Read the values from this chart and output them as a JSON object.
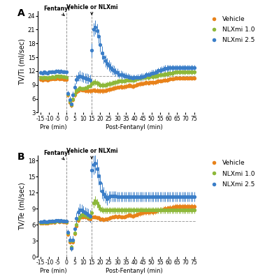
{
  "panel_A": {
    "title": "A",
    "ylabel": "TV/Ti (ml/sec)",
    "ylim": [
      3,
      25
    ],
    "yticks": [
      3,
      6,
      9,
      12,
      15,
      18,
      21,
      24
    ],
    "baseline_ref": 11.0,
    "vehicle": {
      "pre_y": [
        10.2,
        10.1,
        10.3,
        10.2,
        10.1,
        10.2,
        10.3,
        10.4,
        10.3,
        10.4,
        10.5,
        10.3,
        10.4,
        10.3,
        10.2,
        10.2
      ],
      "pre_err": [
        0.4,
        0.4,
        0.4,
        0.4,
        0.4,
        0.4,
        0.4,
        0.4,
        0.4,
        0.4,
        0.4,
        0.4,
        0.4,
        0.4,
        0.4,
        0.4
      ],
      "post_y": [
        6.8,
        5.2,
        4.6,
        5.8,
        6.8,
        7.5,
        7.8,
        8.0,
        7.9,
        7.9,
        7.8,
        7.8,
        7.7,
        7.7,
        7.8,
        7.9,
        7.8,
        7.8,
        7.7,
        7.7,
        7.7,
        7.7,
        7.8,
        7.9,
        8.0,
        8.1,
        8.2,
        8.3,
        8.4,
        8.5,
        8.5,
        8.6,
        8.5,
        8.6,
        8.7,
        8.8,
        8.9,
        8.8,
        8.7,
        8.8,
        9.0,
        9.1,
        9.2,
        9.3,
        9.3,
        9.4,
        9.5,
        9.4,
        9.5,
        9.6,
        9.5,
        9.6,
        9.7,
        9.8,
        9.9,
        9.9,
        10.0,
        10.1,
        10.1,
        10.2,
        10.3,
        10.3,
        10.4,
        10.5,
        10.5,
        10.5,
        10.5,
        10.5,
        10.5,
        10.5,
        10.5,
        10.5,
        10.5,
        10.5,
        10.5
      ],
      "post_err": [
        0.5,
        0.6,
        0.5,
        0.5,
        0.5,
        0.5,
        0.5,
        0.5,
        0.5,
        0.5,
        0.5,
        0.5,
        0.5,
        0.5,
        0.5,
        0.5,
        0.5,
        0.5,
        0.5,
        0.5,
        0.5,
        0.5,
        0.5,
        0.5,
        0.5,
        0.5,
        0.5,
        0.5,
        0.5,
        0.5,
        0.5,
        0.5,
        0.5,
        0.5,
        0.5,
        0.5,
        0.5,
        0.5,
        0.5,
        0.5,
        0.5,
        0.5,
        0.5,
        0.5,
        0.5,
        0.5,
        0.5,
        0.5,
        0.5,
        0.5,
        0.5,
        0.5,
        0.5,
        0.5,
        0.5,
        0.5,
        0.5,
        0.5,
        0.5,
        0.5,
        0.5,
        0.5,
        0.5,
        0.5,
        0.5,
        0.5,
        0.5,
        0.5,
        0.5,
        0.5,
        0.5,
        0.5,
        0.5,
        0.5,
        0.5
      ]
    },
    "nlx1": {
      "pre_y": [
        10.6,
        10.5,
        10.7,
        10.6,
        10.5,
        10.7,
        10.7,
        10.8,
        10.7,
        10.9,
        10.9,
        10.8,
        10.9,
        10.8,
        10.8,
        10.7
      ],
      "pre_err": [
        0.4,
        0.4,
        0.4,
        0.4,
        0.4,
        0.4,
        0.4,
        0.4,
        0.4,
        0.4,
        0.4,
        0.4,
        0.4,
        0.4,
        0.4,
        0.4
      ],
      "post_y": [
        7.0,
        5.5,
        4.8,
        6.0,
        7.0,
        7.8,
        8.1,
        8.3,
        8.2,
        8.2,
        8.3,
        8.4,
        8.6,
        8.8,
        9.2,
        9.5,
        9.6,
        9.4,
        9.2,
        9.0,
        9.0,
        8.9,
        9.0,
        9.1,
        9.2,
        9.3,
        9.4,
        9.5,
        9.6,
        9.7,
        9.8,
        9.9,
        9.8,
        9.9,
        10.0,
        10.1,
        10.2,
        10.1,
        10.0,
        10.1,
        10.3,
        10.4,
        10.5,
        10.6,
        10.6,
        10.7,
        10.8,
        10.7,
        10.8,
        10.9,
        10.8,
        10.9,
        11.0,
        11.1,
        11.2,
        11.2,
        11.3,
        11.4,
        11.4,
        11.5,
        11.6,
        11.6,
        11.7,
        11.8,
        11.8,
        11.8,
        11.8,
        11.8,
        11.8,
        11.8,
        11.8,
        11.8,
        11.8,
        11.8,
        11.8
      ],
      "post_err": [
        0.5,
        0.6,
        0.5,
        0.5,
        0.5,
        0.5,
        0.5,
        0.5,
        0.5,
        0.5,
        0.5,
        0.5,
        0.5,
        0.5,
        0.6,
        0.7,
        0.7,
        0.7,
        0.6,
        0.6,
        0.6,
        0.6,
        0.6,
        0.6,
        0.6,
        0.6,
        0.6,
        0.6,
        0.6,
        0.6,
        0.6,
        0.6,
        0.6,
        0.6,
        0.6,
        0.6,
        0.6,
        0.6,
        0.6,
        0.6,
        0.6,
        0.6,
        0.6,
        0.6,
        0.6,
        0.6,
        0.6,
        0.6,
        0.6,
        0.6,
        0.6,
        0.6,
        0.6,
        0.6,
        0.6,
        0.6,
        0.6,
        0.6,
        0.6,
        0.6,
        0.6,
        0.6,
        0.6,
        0.6,
        0.6,
        0.6,
        0.6,
        0.6,
        0.6,
        0.6,
        0.6,
        0.6,
        0.6,
        0.6,
        0.6
      ]
    },
    "nlx25": {
      "pre_y": [
        11.7,
        11.6,
        11.8,
        11.7,
        11.6,
        11.8,
        11.8,
        11.9,
        11.8,
        12.0,
        12.0,
        11.9,
        12.0,
        11.9,
        11.9,
        11.8
      ],
      "pre_err": [
        0.4,
        0.4,
        0.4,
        0.4,
        0.4,
        0.4,
        0.4,
        0.4,
        0.4,
        0.4,
        0.4,
        0.4,
        0.4,
        0.4,
        0.4,
        0.4
      ],
      "post_y": [
        7.2,
        5.8,
        4.9,
        6.8,
        8.5,
        10.2,
        10.8,
        11.0,
        10.8,
        10.6,
        10.5,
        10.4,
        10.3,
        10.1,
        16.5,
        21.0,
        21.5,
        20.8,
        19.5,
        17.8,
        16.0,
        15.0,
        14.2,
        13.7,
        13.2,
        12.8,
        12.3,
        12.2,
        11.8,
        11.7,
        11.3,
        11.3,
        11.2,
        11.0,
        11.0,
        10.8,
        10.7,
        10.6,
        10.5,
        10.6,
        10.6,
        10.7,
        10.7,
        10.8,
        10.8,
        10.9,
        11.2,
        11.2,
        11.3,
        11.6,
        11.6,
        11.7,
        11.8,
        12.1,
        12.2,
        12.3,
        12.5,
        12.6,
        12.6,
        12.7,
        12.7,
        12.7,
        12.7,
        12.7,
        12.7,
        12.7,
        12.7,
        12.7,
        12.7,
        12.7,
        12.7,
        12.7,
        12.7,
        12.7,
        12.7
      ],
      "post_err": [
        0.6,
        0.8,
        0.7,
        0.8,
        0.9,
        1.0,
        1.0,
        1.1,
        1.1,
        1.1,
        1.1,
        1.1,
        1.1,
        1.2,
        1.5,
        1.5,
        1.5,
        1.5,
        1.5,
        1.5,
        1.5,
        1.3,
        1.3,
        1.2,
        1.2,
        1.1,
        1.0,
        1.0,
        0.9,
        0.9,
        0.8,
        0.8,
        0.8,
        0.7,
        0.7,
        0.7,
        0.7,
        0.7,
        0.7,
        0.7,
        0.7,
        0.7,
        0.7,
        0.7,
        0.7,
        0.7,
        0.7,
        0.7,
        0.7,
        0.7,
        0.7,
        0.7,
        0.7,
        0.7,
        0.7,
        0.7,
        0.7,
        0.7,
        0.7,
        0.7,
        0.7,
        0.7,
        0.7,
        0.7,
        0.7,
        0.7,
        0.7,
        0.7,
        0.7,
        0.7,
        0.7,
        0.7,
        0.7,
        0.7,
        0.7
      ]
    }
  },
  "panel_B": {
    "title": "B",
    "ylabel": "TV/Te (ml/sec)",
    "ylim": [
      0,
      19
    ],
    "yticks": [
      0,
      3,
      6,
      9,
      12,
      15,
      18
    ],
    "baseline_ref": 6.7,
    "vehicle": {
      "pre_y": [
        6.3,
        6.3,
        6.4,
        6.3,
        6.3,
        6.4,
        6.4,
        6.5,
        6.4,
        6.6,
        6.6,
        6.5,
        6.6,
        6.5,
        6.5,
        6.4
      ],
      "pre_err": [
        0.3,
        0.3,
        0.3,
        0.3,
        0.3,
        0.3,
        0.3,
        0.3,
        0.3,
        0.3,
        0.3,
        0.3,
        0.3,
        0.3,
        0.3,
        0.3
      ],
      "post_y": [
        4.2,
        2.8,
        1.6,
        2.8,
        4.3,
        5.8,
        6.8,
        7.3,
        7.5,
        7.5,
        7.4,
        7.4,
        7.2,
        7.1,
        7.5,
        7.5,
        7.4,
        7.3,
        7.3,
        7.0,
        7.0,
        6.9,
        7.0,
        7.1,
        7.2,
        7.3,
        7.4,
        7.5,
        7.6,
        7.5,
        7.6,
        7.5,
        7.4,
        7.5,
        7.6,
        7.7,
        7.8,
        7.7,
        7.6,
        7.7,
        7.9,
        8.0,
        8.1,
        8.2,
        8.2,
        8.3,
        8.4,
        8.3,
        8.4,
        8.5,
        8.4,
        8.5,
        8.6,
        8.7,
        8.8,
        8.8,
        8.9,
        9.0,
        9.0,
        9.1,
        9.2,
        9.2,
        9.3,
        9.4,
        9.4,
        9.4,
        9.4,
        9.4,
        9.4,
        9.4,
        9.4,
        9.4,
        9.4,
        9.4,
        9.4
      ],
      "post_err": [
        0.4,
        0.5,
        0.4,
        0.4,
        0.4,
        0.4,
        0.4,
        0.4,
        0.4,
        0.4,
        0.4,
        0.4,
        0.4,
        0.4,
        0.4,
        0.4,
        0.4,
        0.4,
        0.4,
        0.4,
        0.4,
        0.4,
        0.4,
        0.4,
        0.4,
        0.4,
        0.4,
        0.4,
        0.4,
        0.4,
        0.4,
        0.4,
        0.4,
        0.4,
        0.4,
        0.4,
        0.4,
        0.4,
        0.4,
        0.4,
        0.5,
        0.5,
        0.5,
        0.5,
        0.5,
        0.5,
        0.5,
        0.5,
        0.5,
        0.5,
        0.5,
        0.5,
        0.5,
        0.5,
        0.5,
        0.5,
        0.5,
        0.5,
        0.5,
        0.5,
        0.5,
        0.5,
        0.5,
        0.5,
        0.5,
        0.5,
        0.5,
        0.5,
        0.5,
        0.5,
        0.5,
        0.5,
        0.5,
        0.5,
        0.5
      ]
    },
    "nlx1": {
      "pre_y": [
        6.4,
        6.4,
        6.5,
        6.4,
        6.4,
        6.5,
        6.5,
        6.6,
        6.5,
        6.7,
        6.7,
        6.6,
        6.7,
        6.6,
        6.6,
        6.5
      ],
      "pre_err": [
        0.3,
        0.3,
        0.3,
        0.3,
        0.3,
        0.3,
        0.3,
        0.3,
        0.3,
        0.3,
        0.3,
        0.3,
        0.3,
        0.3,
        0.3,
        0.3
      ],
      "post_y": [
        4.4,
        3.0,
        1.8,
        3.0,
        4.5,
        6.0,
        7.0,
        7.5,
        7.8,
        7.8,
        7.7,
        7.7,
        7.5,
        7.4,
        8.2,
        10.0,
        10.5,
        10.0,
        9.5,
        9.0,
        8.8,
        8.7,
        8.7,
        8.7,
        8.7,
        8.7,
        8.7,
        8.7,
        8.7,
        8.7,
        8.7,
        8.7,
        8.7,
        8.7,
        8.7,
        8.7,
        8.7,
        8.7,
        8.7,
        8.7,
        8.7,
        8.7,
        8.7,
        8.7,
        8.7,
        8.7,
        8.7,
        8.7,
        8.7,
        8.7,
        8.7,
        8.7,
        8.7,
        8.7,
        8.7,
        8.7,
        8.7,
        8.7,
        8.7,
        8.7,
        8.7,
        8.7,
        8.7,
        8.7,
        8.7,
        8.7,
        8.7,
        8.7,
        8.7,
        8.7,
        8.7,
        8.7,
        8.7,
        8.7,
        8.7
      ],
      "post_err": [
        0.4,
        0.5,
        0.4,
        0.4,
        0.4,
        0.5,
        0.5,
        0.5,
        0.5,
        0.5,
        0.5,
        0.5,
        0.5,
        0.5,
        0.6,
        0.8,
        0.9,
        0.8,
        0.7,
        0.7,
        0.6,
        0.6,
        0.6,
        0.6,
        0.6,
        0.6,
        0.6,
        0.6,
        0.6,
        0.6,
        0.6,
        0.6,
        0.6,
        0.6,
        0.6,
        0.6,
        0.6,
        0.6,
        0.6,
        0.6,
        0.6,
        0.6,
        0.6,
        0.6,
        0.6,
        0.6,
        0.6,
        0.6,
        0.6,
        0.6,
        0.6,
        0.6,
        0.6,
        0.6,
        0.6,
        0.6,
        0.6,
        0.6,
        0.6,
        0.6,
        0.6,
        0.6,
        0.6,
        0.6,
        0.6,
        0.6,
        0.6,
        0.6,
        0.6,
        0.6,
        0.6,
        0.6,
        0.6,
        0.6,
        0.6
      ]
    },
    "nlx25": {
      "pre_y": [
        6.5,
        6.5,
        6.6,
        6.5,
        6.5,
        6.6,
        6.6,
        6.7,
        6.6,
        6.8,
        6.8,
        6.7,
        6.8,
        6.7,
        6.7,
        6.6
      ],
      "pre_err": [
        0.3,
        0.3,
        0.3,
        0.3,
        0.3,
        0.3,
        0.3,
        0.3,
        0.3,
        0.3,
        0.3,
        0.3,
        0.3,
        0.3,
        0.3,
        0.3
      ],
      "post_y": [
        4.6,
        3.2,
        1.6,
        3.2,
        5.2,
        7.2,
        8.3,
        8.8,
        8.7,
        8.5,
        8.2,
        8.1,
        7.9,
        7.6,
        16.2,
        17.2,
        17.5,
        16.5,
        15.2,
        13.8,
        12.3,
        11.7,
        11.2,
        10.8,
        11.2,
        11.3,
        11.3,
        11.3,
        11.3,
        11.2,
        11.2,
        11.2,
        11.2,
        11.2,
        11.2,
        11.2,
        11.2,
        11.2,
        11.2,
        11.2,
        11.2,
        11.2,
        11.2,
        11.2,
        11.2,
        11.2,
        11.2,
        11.2,
        11.2,
        11.2,
        11.2,
        11.2,
        11.2,
        11.2,
        11.2,
        11.2,
        11.2,
        11.2,
        11.2,
        11.2,
        11.2,
        11.2,
        11.2,
        11.2,
        11.2,
        11.2,
        11.2,
        11.2,
        11.2,
        11.2,
        11.2,
        11.2,
        11.2,
        11.2,
        11.2
      ],
      "post_err": [
        0.5,
        0.7,
        0.6,
        0.7,
        0.8,
        1.0,
        1.0,
        1.1,
        1.1,
        1.1,
        1.1,
        1.1,
        1.1,
        1.2,
        1.5,
        1.8,
        1.8,
        1.8,
        1.7,
        1.6,
        1.5,
        1.3,
        1.2,
        1.1,
        1.1,
        1.0,
        1.0,
        1.0,
        1.0,
        0.9,
        0.9,
        0.9,
        0.9,
        0.9,
        0.9,
        0.9,
        0.9,
        0.9,
        0.9,
        0.9,
        0.9,
        0.9,
        0.9,
        0.9,
        0.9,
        0.9,
        0.9,
        0.9,
        0.9,
        0.9,
        0.9,
        0.9,
        0.9,
        0.9,
        0.9,
        0.9,
        0.9,
        0.9,
        0.9,
        0.9,
        0.9,
        0.9,
        0.9,
        0.9,
        0.9,
        0.9,
        0.9,
        0.9,
        0.9,
        0.9,
        0.9,
        0.9,
        0.9,
        0.9,
        0.9
      ]
    }
  },
  "colors": {
    "vehicle": "#E8821A",
    "nlx1": "#8DB83A",
    "nlx25": "#3B7EC8"
  },
  "x_pre": [
    -15,
    -14,
    -13,
    -12,
    -11,
    -10,
    -9,
    -8,
    -7,
    -6,
    -5,
    -4,
    -3,
    -2,
    -1,
    0
  ],
  "x_post": [
    1,
    2,
    3,
    4,
    5,
    6,
    7,
    8,
    9,
    10,
    11,
    12,
    13,
    14,
    15,
    16,
    17,
    18,
    19,
    20,
    21,
    22,
    23,
    24,
    25,
    26,
    27,
    28,
    29,
    30,
    31,
    32,
    33,
    34,
    35,
    36,
    37,
    38,
    39,
    40,
    41,
    42,
    43,
    44,
    45,
    46,
    47,
    48,
    49,
    50,
    51,
    52,
    53,
    54,
    55,
    56,
    57,
    58,
    59,
    60,
    61,
    62,
    63,
    64,
    65,
    66,
    67,
    68,
    69,
    70,
    71,
    72,
    73,
    74,
    75
  ],
  "xticks_pre": [
    -15,
    -10,
    -5,
    0
  ],
  "xticks_post": [
    5,
    10,
    15,
    20,
    25,
    30,
    35,
    40,
    45,
    50,
    55,
    60,
    65,
    70,
    75
  ],
  "xlabel_pre": "Pre (min)",
  "xlabel_post": "Post-Fentanyl (min)"
}
